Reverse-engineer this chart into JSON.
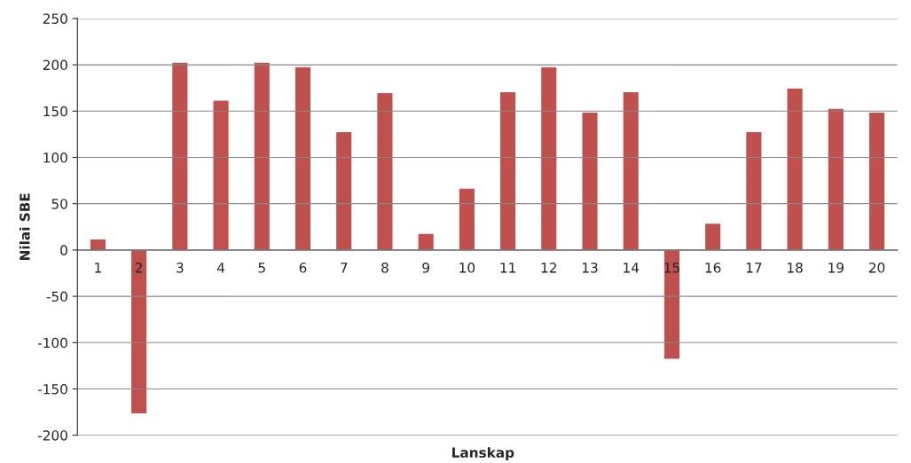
{
  "chart_data": {
    "type": "bar",
    "xlabel": "Lanskap",
    "ylabel": "Nilai SBE",
    "categories": [
      "1",
      "2",
      "3",
      "4",
      "5",
      "6",
      "7",
      "8",
      "9",
      "10",
      "11",
      "12",
      "13",
      "14",
      "15",
      "16",
      "17",
      "18",
      "19",
      "20"
    ],
    "values": [
      12,
      -177,
      203,
      162,
      203,
      198,
      128,
      170,
      18,
      67,
      171,
      198,
      149,
      171,
      -118,
      29,
      128,
      175,
      153,
      149
    ],
    "color": "#c0504d",
    "ylim": [
      -200,
      250
    ],
    "yticks": [
      -200,
      -150,
      -100,
      -50,
      0,
      50,
      100,
      150,
      200,
      250
    ],
    "grid": "y"
  }
}
